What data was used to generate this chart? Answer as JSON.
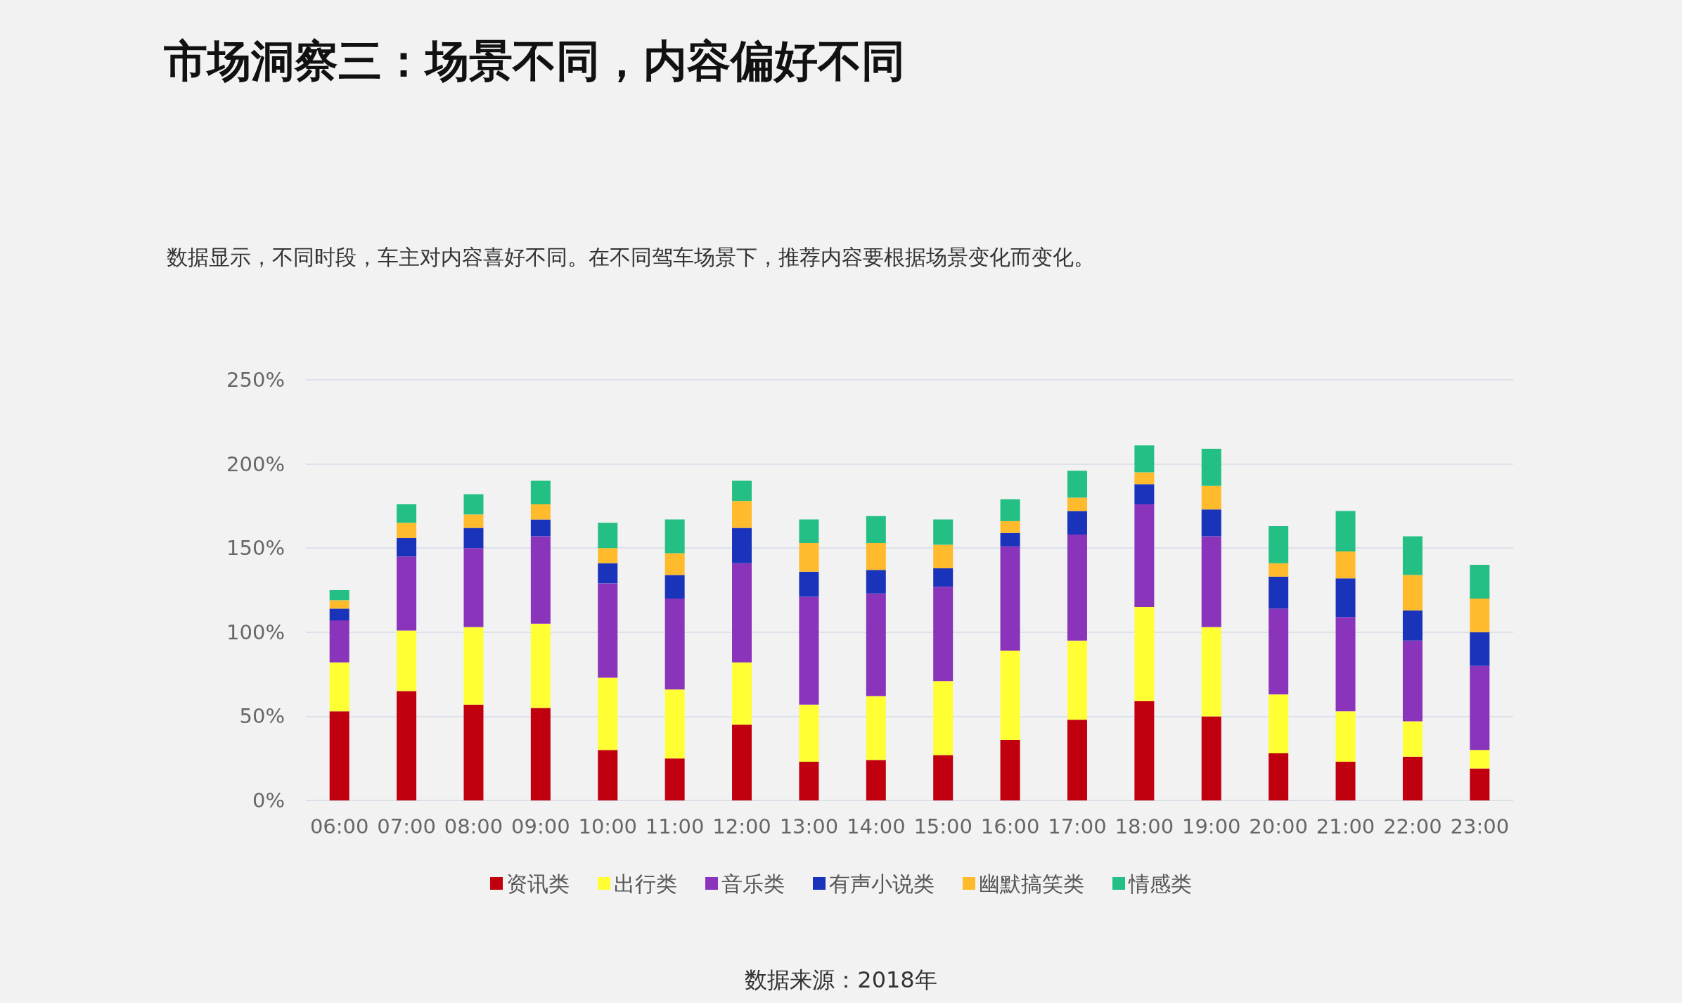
{
  "chart_data": {
    "type": "bar",
    "stacked": true,
    "title": "市场洞察三：场景不同，内容偏好不同",
    "subtitle": "数据显示，不同时段，车主对内容喜好不同。在不同驾车场景下，推荐内容要根据场景变化而变化。",
    "annotations": [
      "数据来源：2018年"
    ],
    "categories": [
      "06:00",
      "07:00",
      "08:00",
      "09:00",
      "10:00",
      "11:00",
      "12:00",
      "13:00",
      "14:00",
      "15:00",
      "16:00",
      "17:00",
      "18:00",
      "19:00",
      "20:00",
      "21:00",
      "22:00",
      "23:00"
    ],
    "series": [
      {
        "name": "资讯类",
        "color": "#c0000f",
        "values": [
          53,
          65,
          57,
          55,
          30,
          25,
          45,
          23,
          24,
          27,
          36,
          48,
          59,
          50,
          28,
          23,
          26,
          19
        ]
      },
      {
        "name": "出行类",
        "color": "#ffff33",
        "values": [
          29,
          36,
          46,
          50,
          43,
          41,
          37,
          34,
          38,
          44,
          53,
          47,
          56,
          53,
          35,
          30,
          21,
          11
        ]
      },
      {
        "name": "音乐类",
        "color": "#8a33bb",
        "values": [
          25,
          44,
          47,
          52,
          56,
          54,
          59,
          64,
          61,
          56,
          62,
          63,
          61,
          54,
          51,
          56,
          48,
          50
        ]
      },
      {
        "name": "有声小说类",
        "color": "#1a33bb",
        "values": [
          7,
          11,
          12,
          10,
          12,
          14,
          21,
          15,
          14,
          11,
          8,
          14,
          12,
          16,
          19,
          23,
          18,
          20
        ]
      },
      {
        "name": "幽默搞笑类",
        "color": "#ffbb2b",
        "values": [
          5,
          9,
          8,
          9,
          9,
          13,
          16,
          17,
          16,
          14,
          7,
          8,
          7,
          14,
          8,
          16,
          21,
          20
        ]
      },
      {
        "name": "情感类",
        "color": "#24bf84",
        "values": [
          6,
          11,
          12,
          14,
          15,
          20,
          12,
          14,
          16,
          15,
          13,
          16,
          16,
          22,
          22,
          24,
          23,
          20
        ]
      }
    ],
    "ylim": [
      0,
      250
    ],
    "yticks": [
      {
        "value": 0,
        "label": "0%"
      },
      {
        "value": 50,
        "label": "50%"
      },
      {
        "value": 100,
        "label": "100%"
      },
      {
        "value": 150,
        "label": "150%"
      },
      {
        "value": 200,
        "label": "200%"
      },
      {
        "value": 250,
        "label": "250%"
      }
    ],
    "grid": "y",
    "legend": "bottom"
  }
}
